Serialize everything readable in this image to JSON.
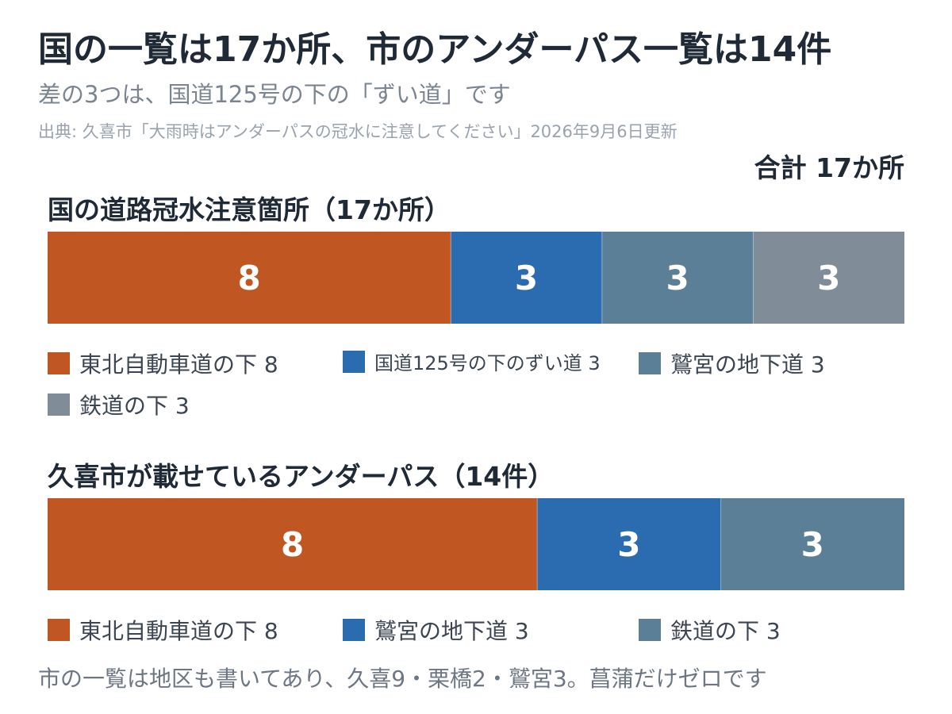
{
  "title": "国の一覧は17か所、市のアンダーパス一覧は14件",
  "subtitle": "差の3つは、国道125号の下の「ずい道」です",
  "source": "出典: 久喜市「大雨時はアンダーパスの冠水に注意してください」2026年9月6日更新",
  "total_label": "合計 17か所",
  "footnote": "市の一覧は地区も書いてあり、久喜9・栗橋2・鷲宮3。菖蒲だけゼロです",
  "colors": {
    "orange": "#c05621",
    "blue": "#2b6cb0",
    "slate": "#5a7f96",
    "gray": "#818c99"
  },
  "chart_data": [
    {
      "type": "bar",
      "stacked": true,
      "orientation": "horizontal",
      "title": "国の道路冠水注意箇所（17か所）",
      "series": [
        {
          "name": "東北自動車道の下",
          "value": 8,
          "color": "#c05621",
          "legend": "東北自動車道の下 8"
        },
        {
          "name": "国道125号の下のずい道",
          "value": 3,
          "color": "#2b6cb0",
          "legend": "国道125号の下のずい道 3"
        },
        {
          "name": "鷲宮の地下道",
          "value": 3,
          "color": "#5a7f96",
          "legend": "鷲宮の地下道 3"
        },
        {
          "name": "鉄道の下",
          "value": 3,
          "color": "#818c99",
          "legend": "鉄道の下 3"
        }
      ]
    },
    {
      "type": "bar",
      "stacked": true,
      "orientation": "horizontal",
      "title": "久喜市が載せているアンダーパス（14件）",
      "series": [
        {
          "name": "東北自動車道の下",
          "value": 8,
          "color": "#c05621",
          "legend": "東北自動車道の下 8"
        },
        {
          "name": "鷲宮の地下道",
          "value": 3,
          "color": "#2b6cb0",
          "legend": "鷲宮の地下道 3"
        },
        {
          "name": "鉄道の下",
          "value": 3,
          "color": "#5a7f96",
          "legend": "鉄道の下 3"
        }
      ]
    }
  ]
}
